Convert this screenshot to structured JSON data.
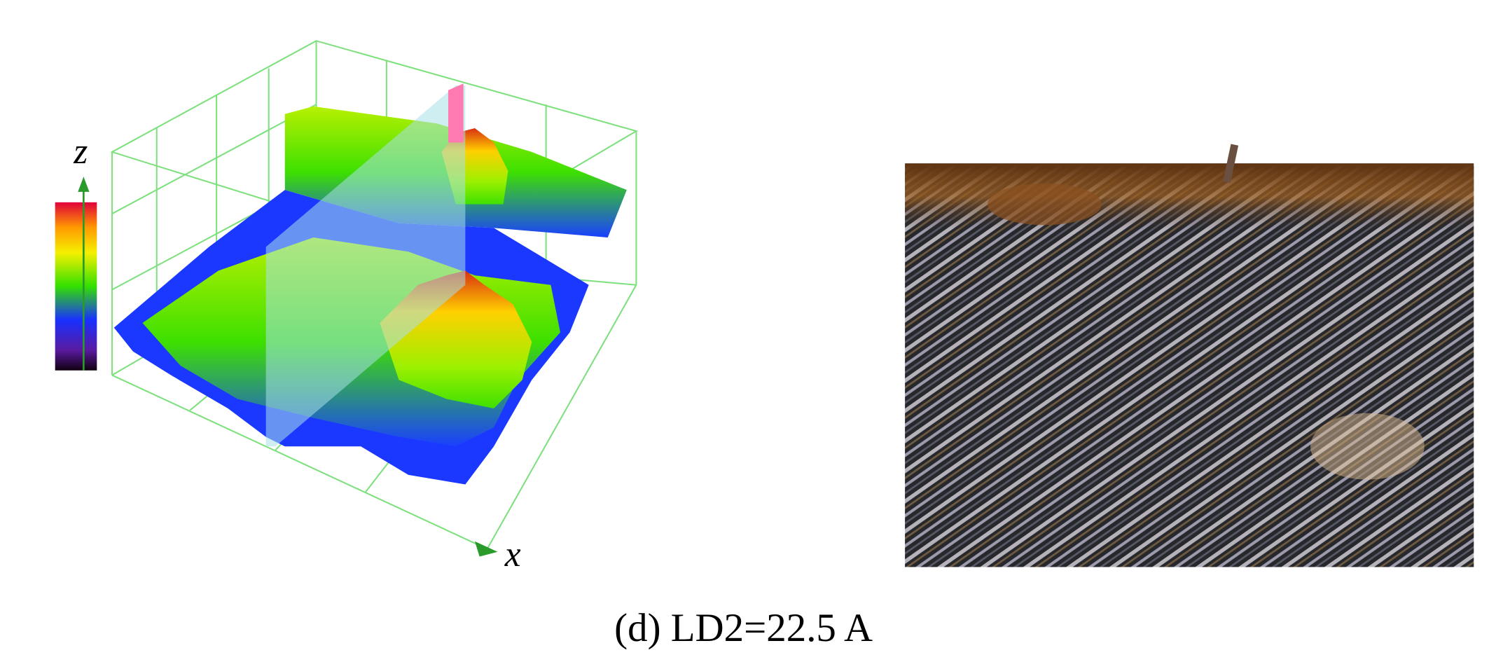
{
  "figure": {
    "z_axis_label": "z",
    "x_axis_label": "x",
    "caption": "(d) LD2=22.5 A"
  }
}
